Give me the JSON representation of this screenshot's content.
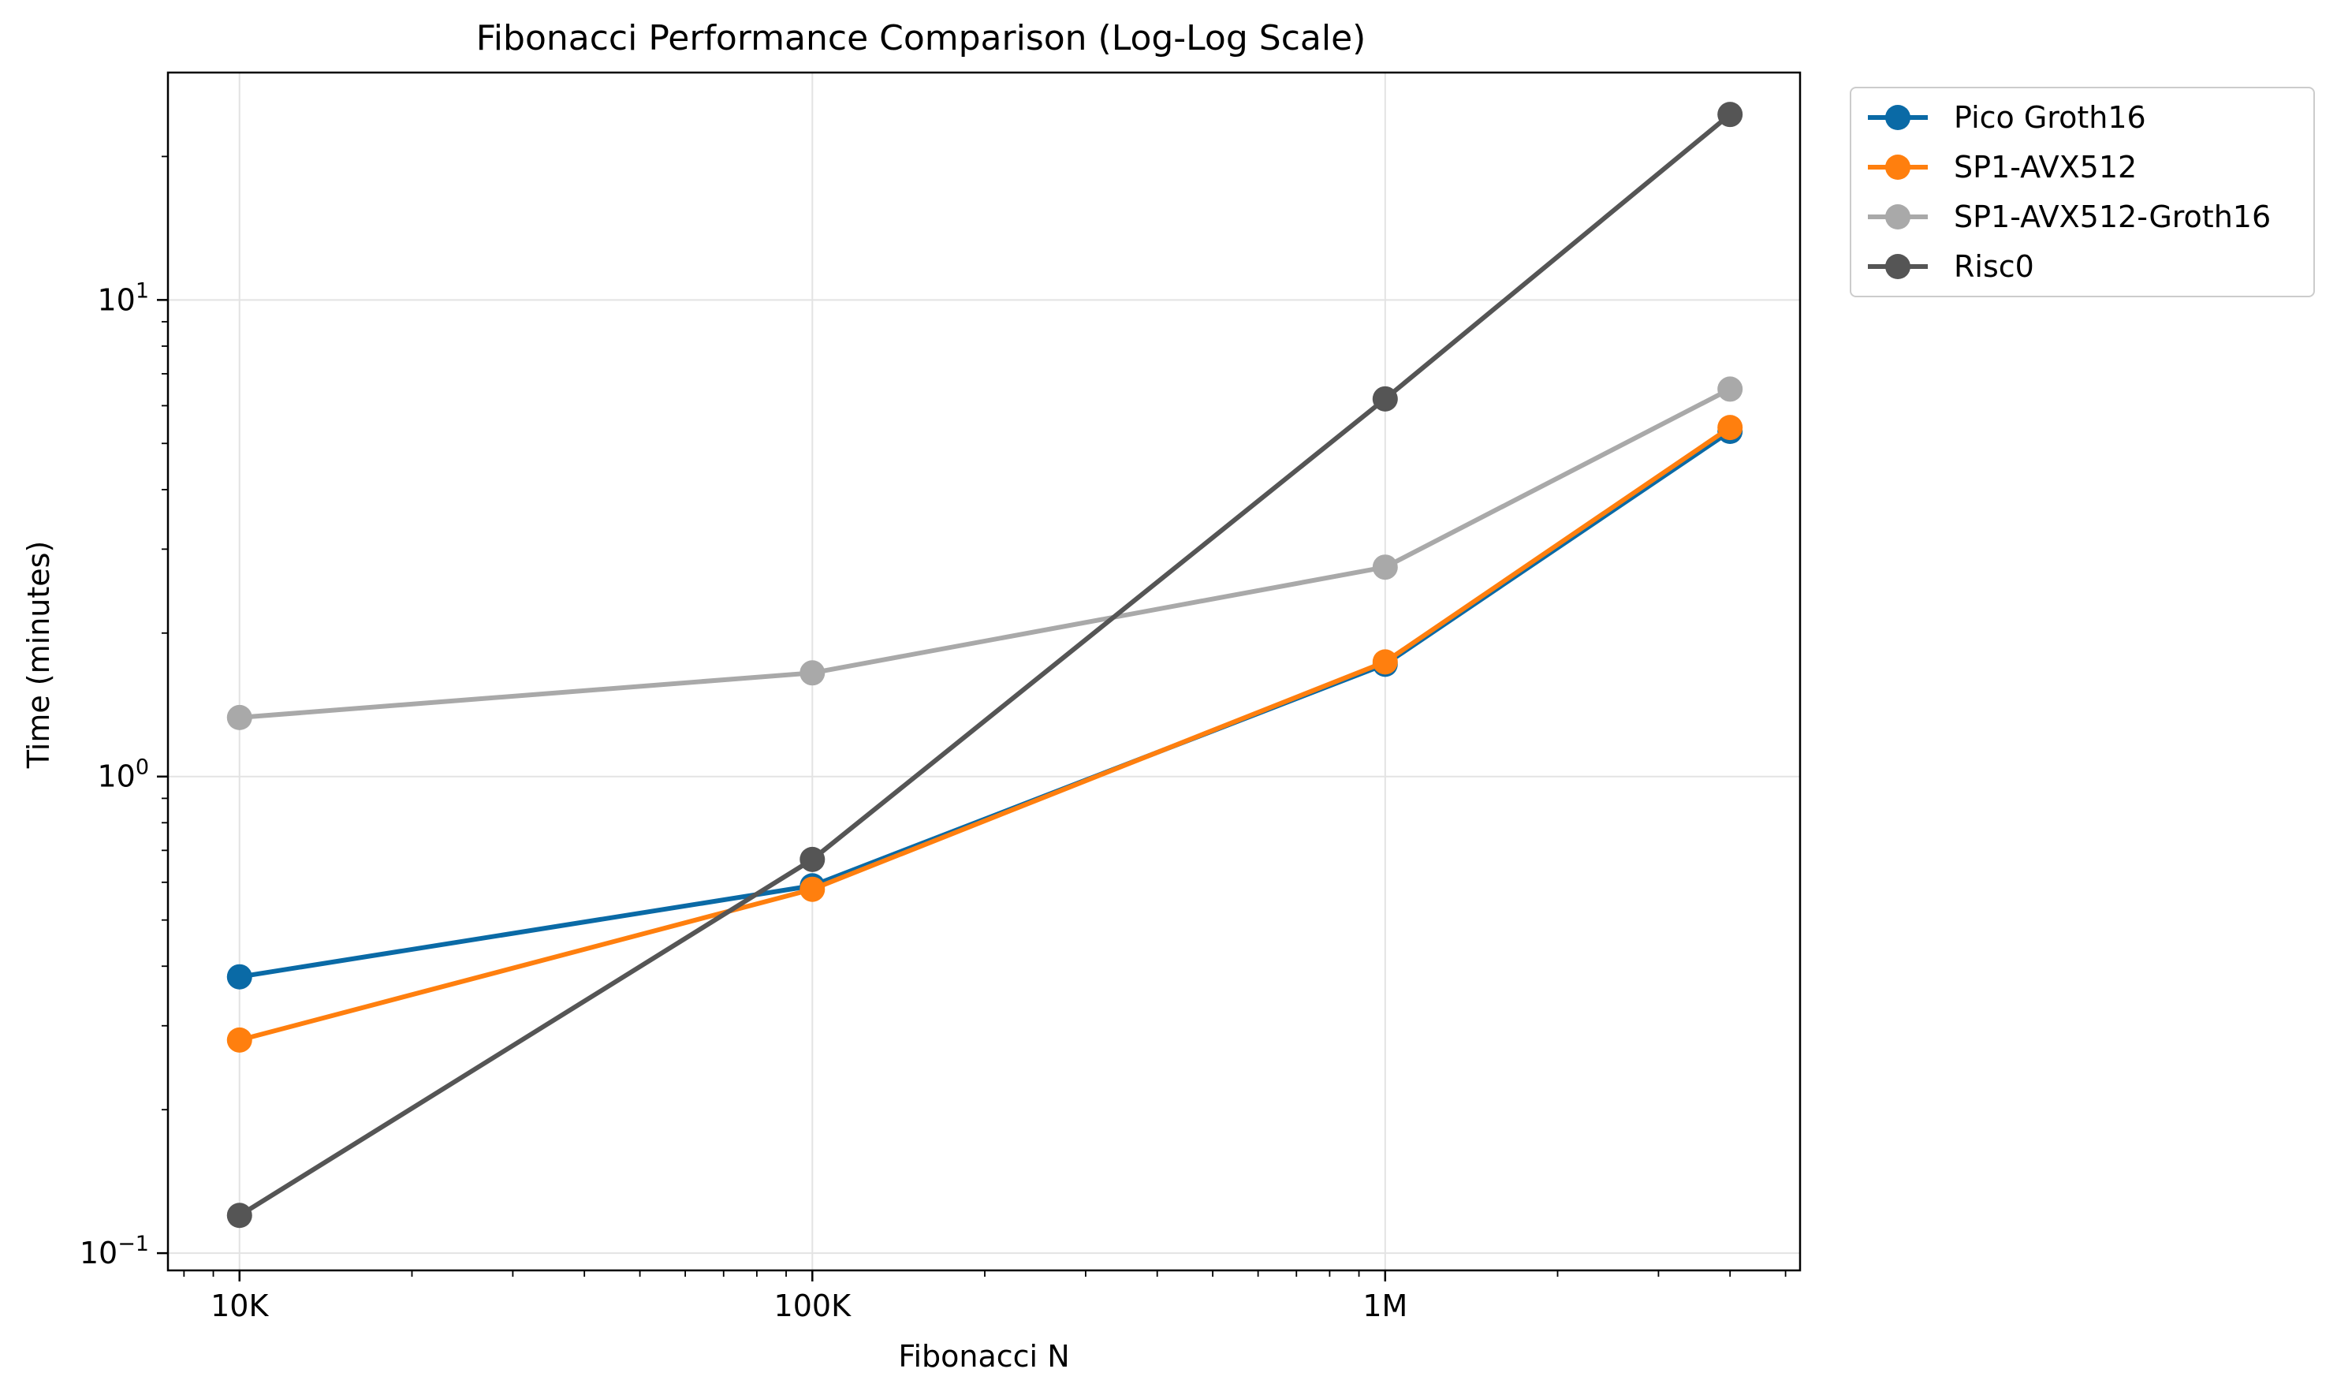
{
  "chart_data": {
    "type": "line",
    "title": "Fibonacci Performance Comparison (Log-Log Scale)",
    "xlabel": "Fibonacci N",
    "ylabel": "Time (minutes)",
    "xscale": "log",
    "yscale": "log",
    "xlim": [
      7500,
      5300000
    ],
    "ylim": [
      0.092,
      30
    ],
    "x_ticks": [
      {
        "value": 10000,
        "label": "10K"
      },
      {
        "value": 100000,
        "label": "100K"
      },
      {
        "value": 1000000,
        "label": "1M"
      }
    ],
    "y_ticks": [
      {
        "value": 0.1,
        "base": "10",
        "exp": "−1"
      },
      {
        "value": 1,
        "base": "10",
        "exp": "0"
      },
      {
        "value": 10,
        "base": "10",
        "exp": "1"
      }
    ],
    "grid": true,
    "legend_position": "outside-top-right",
    "x": [
      10000,
      100000,
      1000000,
      4000000
    ],
    "series": [
      {
        "name": "Pico Groth16",
        "color": "#0a6aa6",
        "values": [
          0.38,
          0.59,
          1.72,
          5.3
        ]
      },
      {
        "name": "SP1-AVX512",
        "color": "#ff7f0e",
        "values": [
          0.28,
          0.58,
          1.74,
          5.4
        ]
      },
      {
        "name": "SP1-AVX512-Groth16",
        "color": "#a9a9a9",
        "values": [
          1.33,
          1.65,
          2.75,
          6.5
        ]
      },
      {
        "name": "Risc0",
        "color": "#555555",
        "values": [
          0.12,
          0.67,
          6.2,
          24.5
        ]
      }
    ]
  }
}
